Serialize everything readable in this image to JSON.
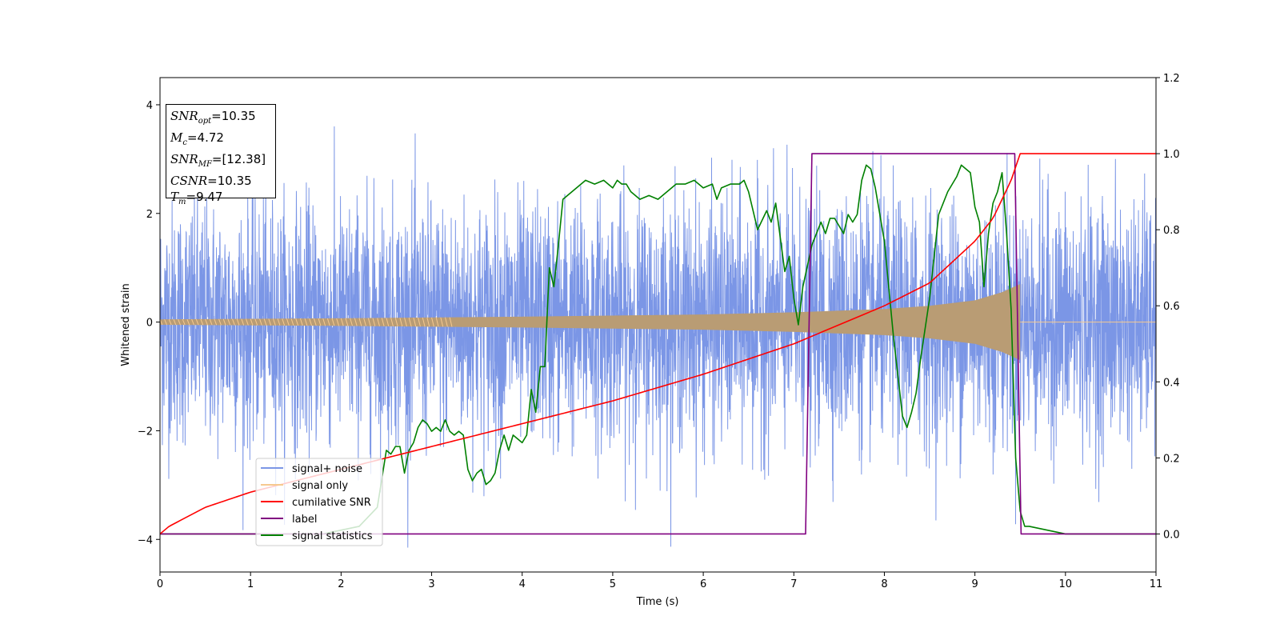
{
  "chart_data": {
    "type": "line",
    "xlabel": "Time (s)",
    "ylabel": "Whitened strain",
    "xlim": [
      0,
      11
    ],
    "ylim_left": [
      -4.6,
      4.5
    ],
    "ylim_right": [
      -0.1,
      1.2
    ],
    "x_ticks": [
      "0",
      "1",
      "2",
      "3",
      "4",
      "5",
      "6",
      "7",
      "8",
      "9",
      "10",
      "11"
    ],
    "y_left_ticks": [
      "4",
      "2",
      "0",
      "−2",
      "−4"
    ],
    "y_left_tick_values": [
      4,
      2,
      0,
      -2,
      -4
    ],
    "y_right_ticks": [
      "1.2",
      "1.0",
      "0.8",
      "0.6",
      "0.4",
      "0.2",
      "0.0"
    ],
    "y_right_tick_values": [
      1.2,
      1.0,
      0.8,
      0.6,
      0.4,
      0.2,
      0.0
    ],
    "annotation": {
      "snr_opt": {
        "label": "SNR",
        "sub": "opt",
        "value": "=10.35"
      },
      "mc": {
        "label": "M",
        "sub": "c",
        "value": "=4.72"
      },
      "snr_mf": {
        "label": "SNR",
        "sub": "MF",
        "value": "=[12.38]"
      },
      "csnr": {
        "label": "CSNR",
        "value": "=10.35"
      },
      "tm": {
        "label": "T",
        "sub": "m",
        "value": "=9.47"
      }
    },
    "series": [
      {
        "name": "signal+ noise",
        "axis": "left",
        "color": "#7b96e6",
        "kind": "noise",
        "x_range": [
          0,
          11
        ],
        "approx_std": 1.1,
        "approx_extremes": [
          -4.15,
          4.05
        ]
      },
      {
        "name": "signal only",
        "axis": "left",
        "color": "#f6c98f",
        "kind": "chirp",
        "x_range": [
          0,
          9.5
        ],
        "envelope_t": [
          0,
          2,
          4,
          6,
          7,
          8,
          8.5,
          9,
          9.3,
          9.5
        ],
        "envelope_amp": [
          0.05,
          0.07,
          0.1,
          0.14,
          0.18,
          0.24,
          0.3,
          0.4,
          0.55,
          0.7
        ]
      },
      {
        "name": "cumilative SNR",
        "axis": "right",
        "color": "#ff0000",
        "x": [
          0,
          0.1,
          0.5,
          1,
          2,
          3,
          4,
          5,
          6,
          7,
          7.5,
          8,
          8.5,
          9,
          9.2,
          9.4,
          9.5,
          11
        ],
        "y": [
          0.0,
          0.02,
          0.07,
          0.11,
          0.17,
          0.23,
          0.29,
          0.35,
          0.42,
          0.5,
          0.55,
          0.6,
          0.66,
          0.77,
          0.83,
          0.93,
          1.0,
          1.0
        ]
      },
      {
        "name": "label",
        "axis": "right",
        "color": "#800080",
        "x": [
          0,
          7.13,
          7.2,
          9.44,
          9.51,
          11
        ],
        "y": [
          0,
          0,
          1,
          1,
          0,
          0
        ]
      },
      {
        "name": "signal statistics",
        "axis": "right",
        "color": "#008000",
        "x": [
          0,
          1,
          1.8,
          2.2,
          2.4,
          2.5,
          2.55,
          2.6,
          2.65,
          2.7,
          2.75,
          2.8,
          2.85,
          2.9,
          2.95,
          3.0,
          3.05,
          3.1,
          3.15,
          3.2,
          3.25,
          3.3,
          3.35,
          3.4,
          3.45,
          3.5,
          3.55,
          3.6,
          3.65,
          3.7,
          3.75,
          3.8,
          3.85,
          3.9,
          3.95,
          4.0,
          4.05,
          4.1,
          4.15,
          4.2,
          4.25,
          4.3,
          4.35,
          4.4,
          4.45,
          4.5,
          4.55,
          4.6,
          4.65,
          4.7,
          4.8,
          4.9,
          5.0,
          5.05,
          5.1,
          5.15,
          5.2,
          5.3,
          5.4,
          5.5,
          5.6,
          5.7,
          5.8,
          5.9,
          6.0,
          6.1,
          6.15,
          6.2,
          6.3,
          6.4,
          6.45,
          6.5,
          6.6,
          6.7,
          6.75,
          6.8,
          6.9,
          6.95,
          7.0,
          7.05,
          7.1,
          7.2,
          7.3,
          7.35,
          7.4,
          7.45,
          7.5,
          7.55,
          7.6,
          7.65,
          7.7,
          7.75,
          7.8,
          7.85,
          7.9,
          8.0,
          8.1,
          8.2,
          8.25,
          8.3,
          8.35,
          8.4,
          8.5,
          8.6,
          8.7,
          8.75,
          8.8,
          8.85,
          8.9,
          8.95,
          9.0,
          9.05,
          9.1,
          9.15,
          9.2,
          9.25,
          9.3,
          9.35,
          9.4,
          9.45,
          9.5,
          9.55,
          9.6,
          9.7,
          9.8,
          9.9,
          10.0,
          10.2,
          10.5,
          11.0
        ],
        "y": [
          0.0,
          0.0,
          0.0,
          0.02,
          0.07,
          0.22,
          0.21,
          0.23,
          0.23,
          0.16,
          0.22,
          0.24,
          0.28,
          0.3,
          0.29,
          0.27,
          0.28,
          0.27,
          0.3,
          0.27,
          0.26,
          0.27,
          0.26,
          0.17,
          0.14,
          0.16,
          0.17,
          0.13,
          0.14,
          0.16,
          0.22,
          0.26,
          0.22,
          0.26,
          0.25,
          0.24,
          0.26,
          0.38,
          0.32,
          0.44,
          0.44,
          0.7,
          0.65,
          0.76,
          0.88,
          0.89,
          0.9,
          0.91,
          0.92,
          0.93,
          0.92,
          0.93,
          0.91,
          0.93,
          0.92,
          0.92,
          0.9,
          0.88,
          0.89,
          0.88,
          0.9,
          0.92,
          0.92,
          0.93,
          0.91,
          0.92,
          0.88,
          0.91,
          0.92,
          0.92,
          0.93,
          0.9,
          0.8,
          0.85,
          0.82,
          0.87,
          0.69,
          0.73,
          0.62,
          0.55,
          0.65,
          0.76,
          0.82,
          0.79,
          0.83,
          0.83,
          0.81,
          0.79,
          0.84,
          0.82,
          0.84,
          0.93,
          0.97,
          0.96,
          0.91,
          0.77,
          0.52,
          0.31,
          0.28,
          0.32,
          0.37,
          0.46,
          0.62,
          0.84,
          0.9,
          0.92,
          0.94,
          0.97,
          0.96,
          0.95,
          0.86,
          0.82,
          0.65,
          0.79,
          0.87,
          0.9,
          0.95,
          0.79,
          0.59,
          0.2,
          0.06,
          0.02,
          0.02,
          0.015,
          0.01,
          0.005,
          0.0,
          0.0,
          0.0,
          0.0
        ]
      }
    ],
    "legend": {
      "placement": "lower-left",
      "entries": [
        "signal+ noise",
        "signal only",
        "cumilative SNR",
        "label",
        "signal statistics"
      ]
    }
  }
}
